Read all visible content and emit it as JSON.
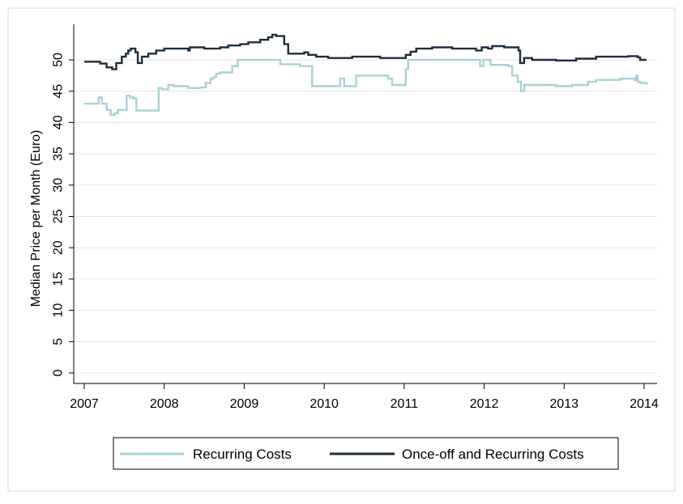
{
  "chart_data": {
    "type": "line",
    "title": "",
    "xlabel": "",
    "ylabel": "Median Price per Month (Euro)",
    "xlim": [
      2007,
      2014.05
    ],
    "ylim": [
      0,
      55
    ],
    "x_ticks": [
      2007,
      2008,
      2009,
      2010,
      2011,
      2012,
      2013,
      2014
    ],
    "y_ticks": [
      0,
      5,
      10,
      15,
      20,
      25,
      30,
      35,
      40,
      45,
      50
    ],
    "x_tick_labels": [
      "2007",
      "2008",
      "2009",
      "2010",
      "2011",
      "2012",
      "2013",
      "2014"
    ],
    "y_tick_labels": [
      "0",
      "5",
      "10",
      "15",
      "20",
      "25",
      "30",
      "35",
      "40",
      "45",
      "50"
    ],
    "grid": "horizontal",
    "legend": "bottom",
    "series": [
      {
        "name": "Recurring Costs",
        "color": "#a9d1d6",
        "step": true,
        "points": [
          [
            2007.0,
            43.0
          ],
          [
            2007.18,
            44.0
          ],
          [
            2007.22,
            43.0
          ],
          [
            2007.28,
            42.0
          ],
          [
            2007.33,
            41.2
          ],
          [
            2007.38,
            41.5
          ],
          [
            2007.42,
            42.0
          ],
          [
            2007.53,
            44.3
          ],
          [
            2007.57,
            44.0
          ],
          [
            2007.62,
            43.8
          ],
          [
            2007.65,
            41.9
          ],
          [
            2007.93,
            45.5
          ],
          [
            2007.97,
            45.3
          ],
          [
            2008.05,
            46.0
          ],
          [
            2008.12,
            45.8
          ],
          [
            2008.3,
            45.5
          ],
          [
            2008.45,
            45.6
          ],
          [
            2008.52,
            46.3
          ],
          [
            2008.58,
            47.0
          ],
          [
            2008.62,
            47.3
          ],
          [
            2008.65,
            47.8
          ],
          [
            2008.7,
            48.0
          ],
          [
            2008.85,
            49.0
          ],
          [
            2008.92,
            50.0
          ],
          [
            2009.45,
            49.3
          ],
          [
            2009.7,
            49.0
          ],
          [
            2009.85,
            45.8
          ],
          [
            2010.2,
            47.0
          ],
          [
            2010.25,
            45.8
          ],
          [
            2010.4,
            47.5
          ],
          [
            2010.8,
            47.0
          ],
          [
            2010.85,
            46.0
          ],
          [
            2011.02,
            48.5
          ],
          [
            2011.05,
            50.0
          ],
          [
            2011.95,
            49.0
          ],
          [
            2011.99,
            50.0
          ],
          [
            2012.08,
            49.2
          ],
          [
            2012.3,
            49.0
          ],
          [
            2012.35,
            47.5
          ],
          [
            2012.42,
            46.5
          ],
          [
            2012.46,
            45.0
          ],
          [
            2012.5,
            46.0
          ],
          [
            2012.9,
            45.8
          ],
          [
            2013.1,
            46.0
          ],
          [
            2013.3,
            46.5
          ],
          [
            2013.4,
            46.8
          ],
          [
            2013.7,
            47.0
          ],
          [
            2013.88,
            46.8
          ],
          [
            2013.9,
            47.5
          ],
          [
            2013.92,
            46.5
          ],
          [
            2013.95,
            46.3
          ],
          [
            2014.03,
            46.0
          ]
        ]
      },
      {
        "name": "Once-off and Recurring Costs",
        "color": "#1f2d3d",
        "step": true,
        "points": [
          [
            2007.0,
            49.7
          ],
          [
            2007.2,
            49.4
          ],
          [
            2007.28,
            48.8
          ],
          [
            2007.35,
            48.5
          ],
          [
            2007.4,
            49.5
          ],
          [
            2007.47,
            50.5
          ],
          [
            2007.52,
            51.0
          ],
          [
            2007.55,
            51.5
          ],
          [
            2007.58,
            51.8
          ],
          [
            2007.64,
            51.2
          ],
          [
            2007.67,
            49.5
          ],
          [
            2007.72,
            50.5
          ],
          [
            2007.8,
            51.0
          ],
          [
            2007.9,
            51.5
          ],
          [
            2008.0,
            51.8
          ],
          [
            2008.3,
            51.5
          ],
          [
            2008.32,
            52.0
          ],
          [
            2008.5,
            51.8
          ],
          [
            2008.7,
            52.0
          ],
          [
            2008.8,
            52.3
          ],
          [
            2008.95,
            52.5
          ],
          [
            2009.05,
            52.8
          ],
          [
            2009.2,
            53.2
          ],
          [
            2009.3,
            53.6
          ],
          [
            2009.35,
            54.0
          ],
          [
            2009.4,
            53.8
          ],
          [
            2009.5,
            52.5
          ],
          [
            2009.55,
            51.0
          ],
          [
            2009.75,
            51.2
          ],
          [
            2009.8,
            50.8
          ],
          [
            2009.9,
            50.5
          ],
          [
            2010.05,
            50.3
          ],
          [
            2010.35,
            50.5
          ],
          [
            2010.7,
            50.3
          ],
          [
            2011.02,
            50.8
          ],
          [
            2011.08,
            51.3
          ],
          [
            2011.15,
            51.8
          ],
          [
            2011.35,
            52.0
          ],
          [
            2011.6,
            51.8
          ],
          [
            2011.9,
            51.5
          ],
          [
            2011.97,
            52.0
          ],
          [
            2012.05,
            51.8
          ],
          [
            2012.1,
            52.2
          ],
          [
            2012.25,
            52.0
          ],
          [
            2012.43,
            51.5
          ],
          [
            2012.45,
            49.5
          ],
          [
            2012.5,
            50.3
          ],
          [
            2012.6,
            50.0
          ],
          [
            2012.9,
            49.9
          ],
          [
            2013.15,
            50.2
          ],
          [
            2013.4,
            50.5
          ],
          [
            2013.8,
            50.6
          ],
          [
            2013.92,
            50.4
          ],
          [
            2013.95,
            50.0
          ],
          [
            2014.03,
            50.0
          ]
        ]
      }
    ]
  }
}
